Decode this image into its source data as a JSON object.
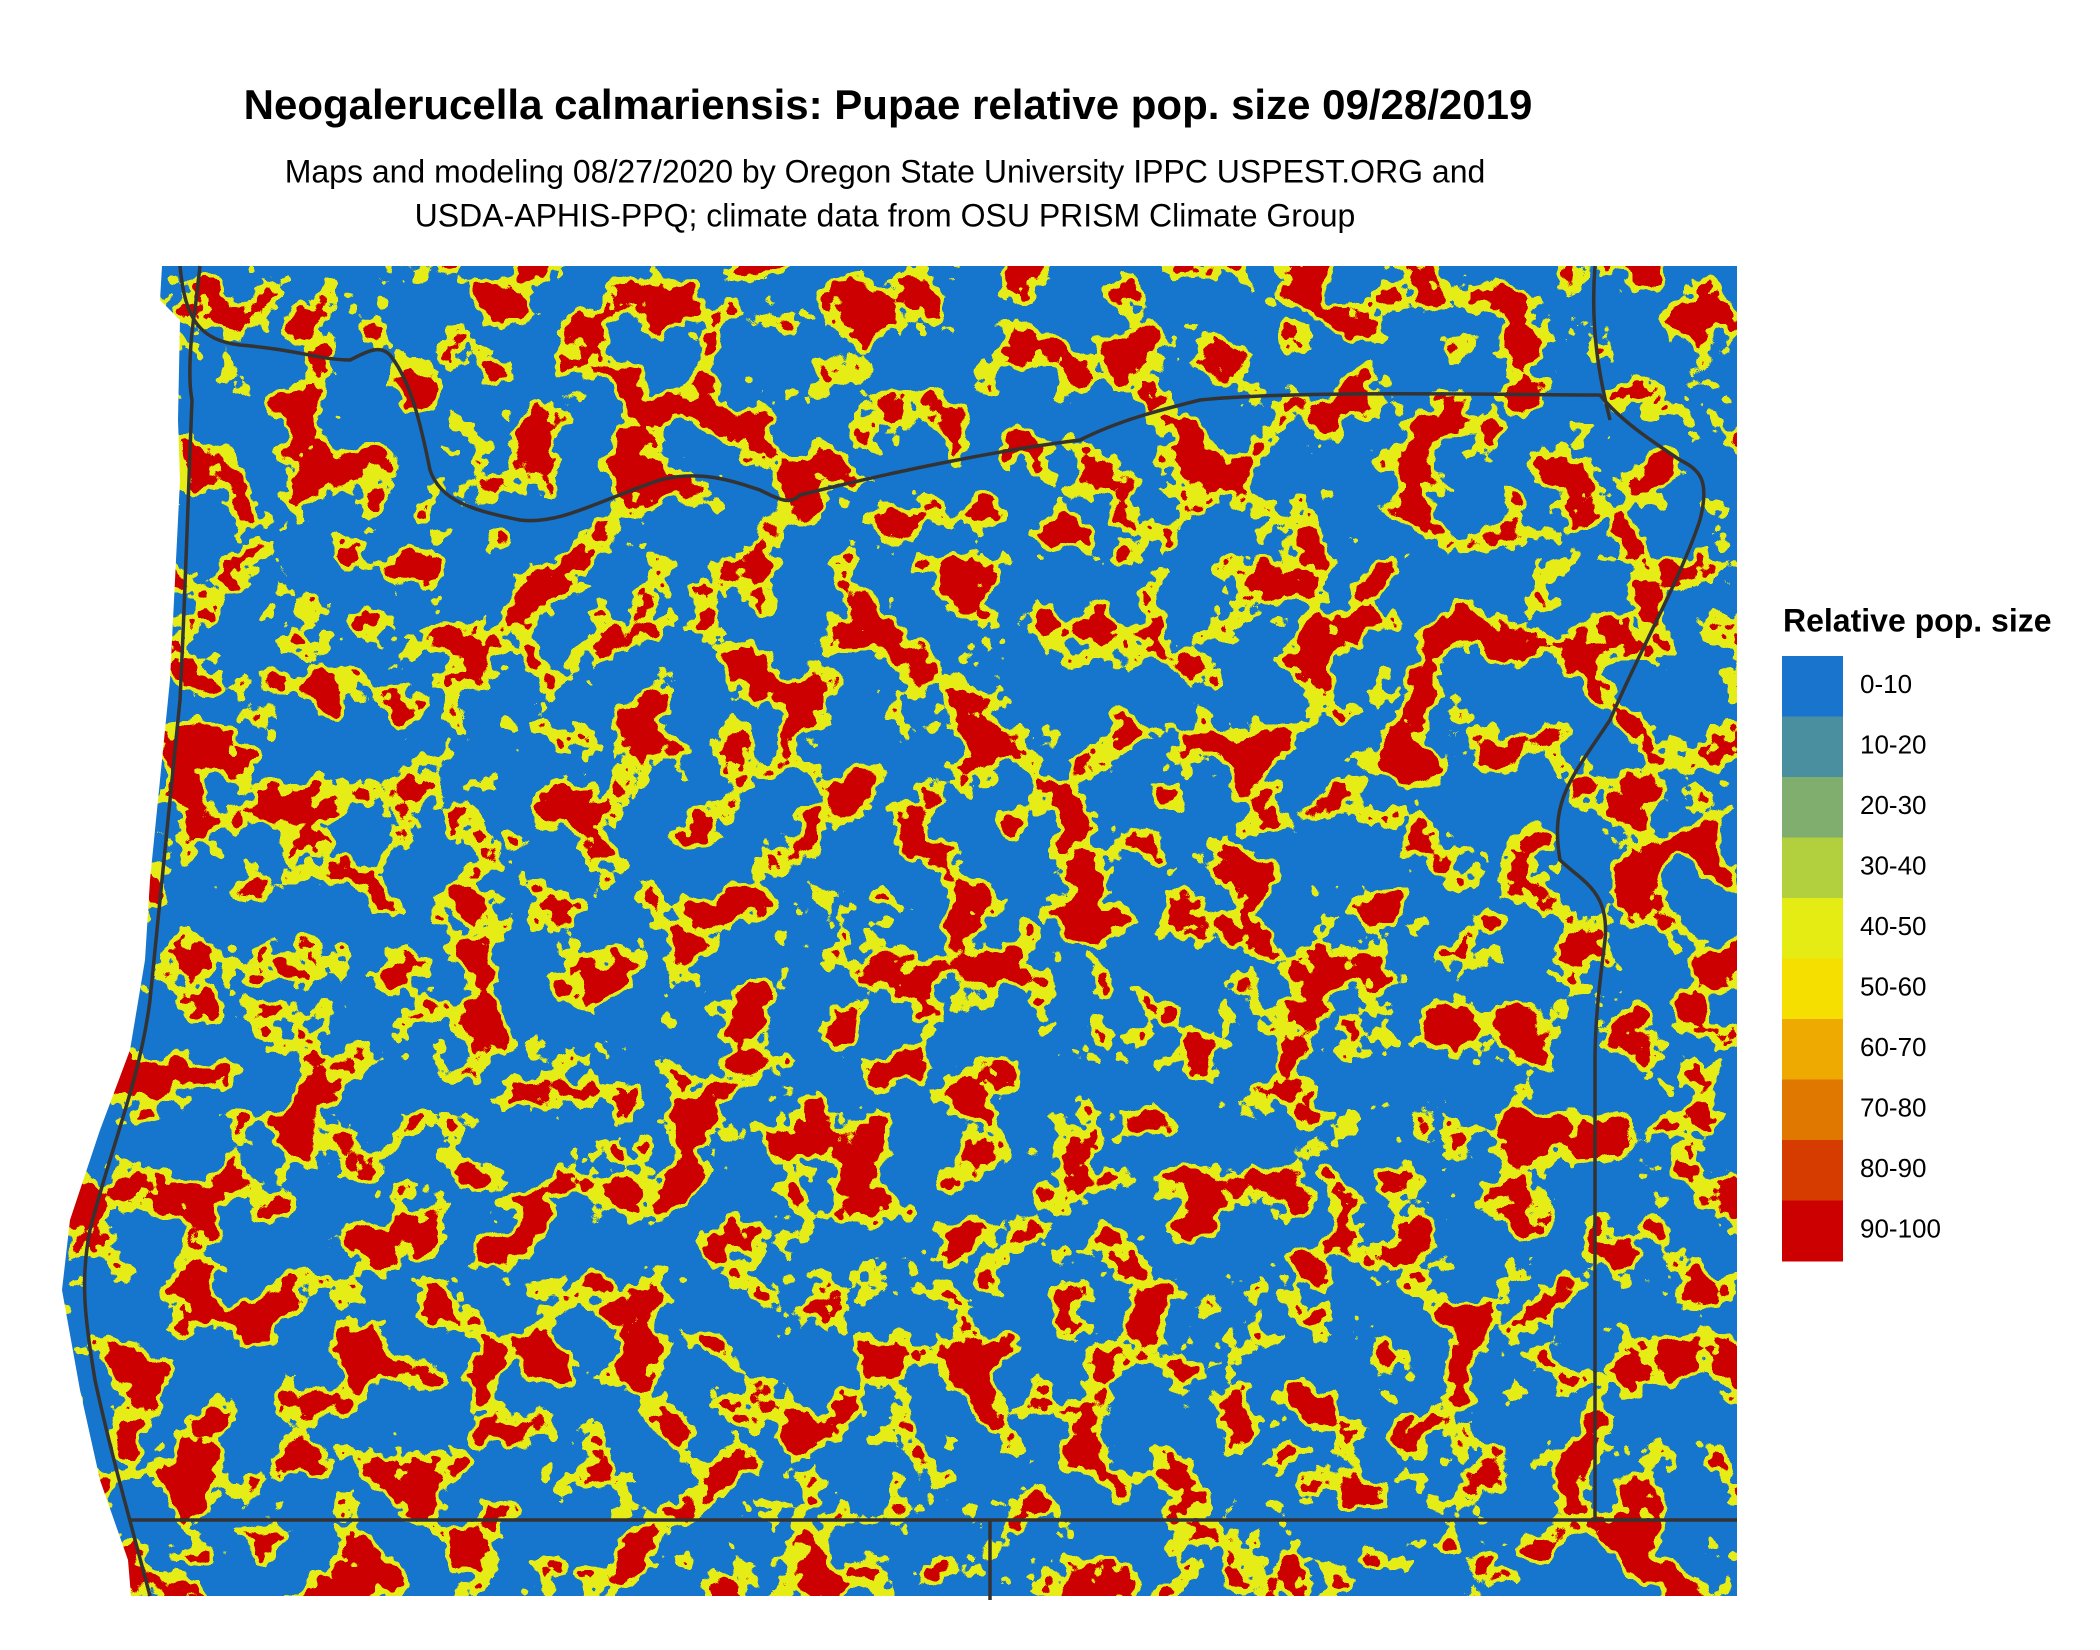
{
  "title": "Neogalerucella calmariensis: Pupae relative pop. size 09/28/2019",
  "subtitle": [
    "Maps and modeling 08/27/2020 by Oregon State University IPPC USPEST.ORG and",
    "USDA-APHIS-PPQ; climate data from OSU PRISM Climate Group"
  ],
  "legend": {
    "title": "Relative pop. size",
    "items": [
      {
        "label": "0-10",
        "color": "#1874cd"
      },
      {
        "label": "10-20",
        "color": "#4a8fa0"
      },
      {
        "label": "20-30",
        "color": "#7fae6e"
      },
      {
        "label": "30-40",
        "color": "#b2cf3e"
      },
      {
        "label": "40-50",
        "color": "#e5ec14"
      },
      {
        "label": "50-60",
        "color": "#f5df00"
      },
      {
        "label": "60-70",
        "color": "#eeaa00"
      },
      {
        "label": "70-80",
        "color": "#e07800"
      },
      {
        "label": "80-90",
        "color": "#d63c00"
      },
      {
        "label": "90-100",
        "color": "#cc0000"
      }
    ]
  }
}
